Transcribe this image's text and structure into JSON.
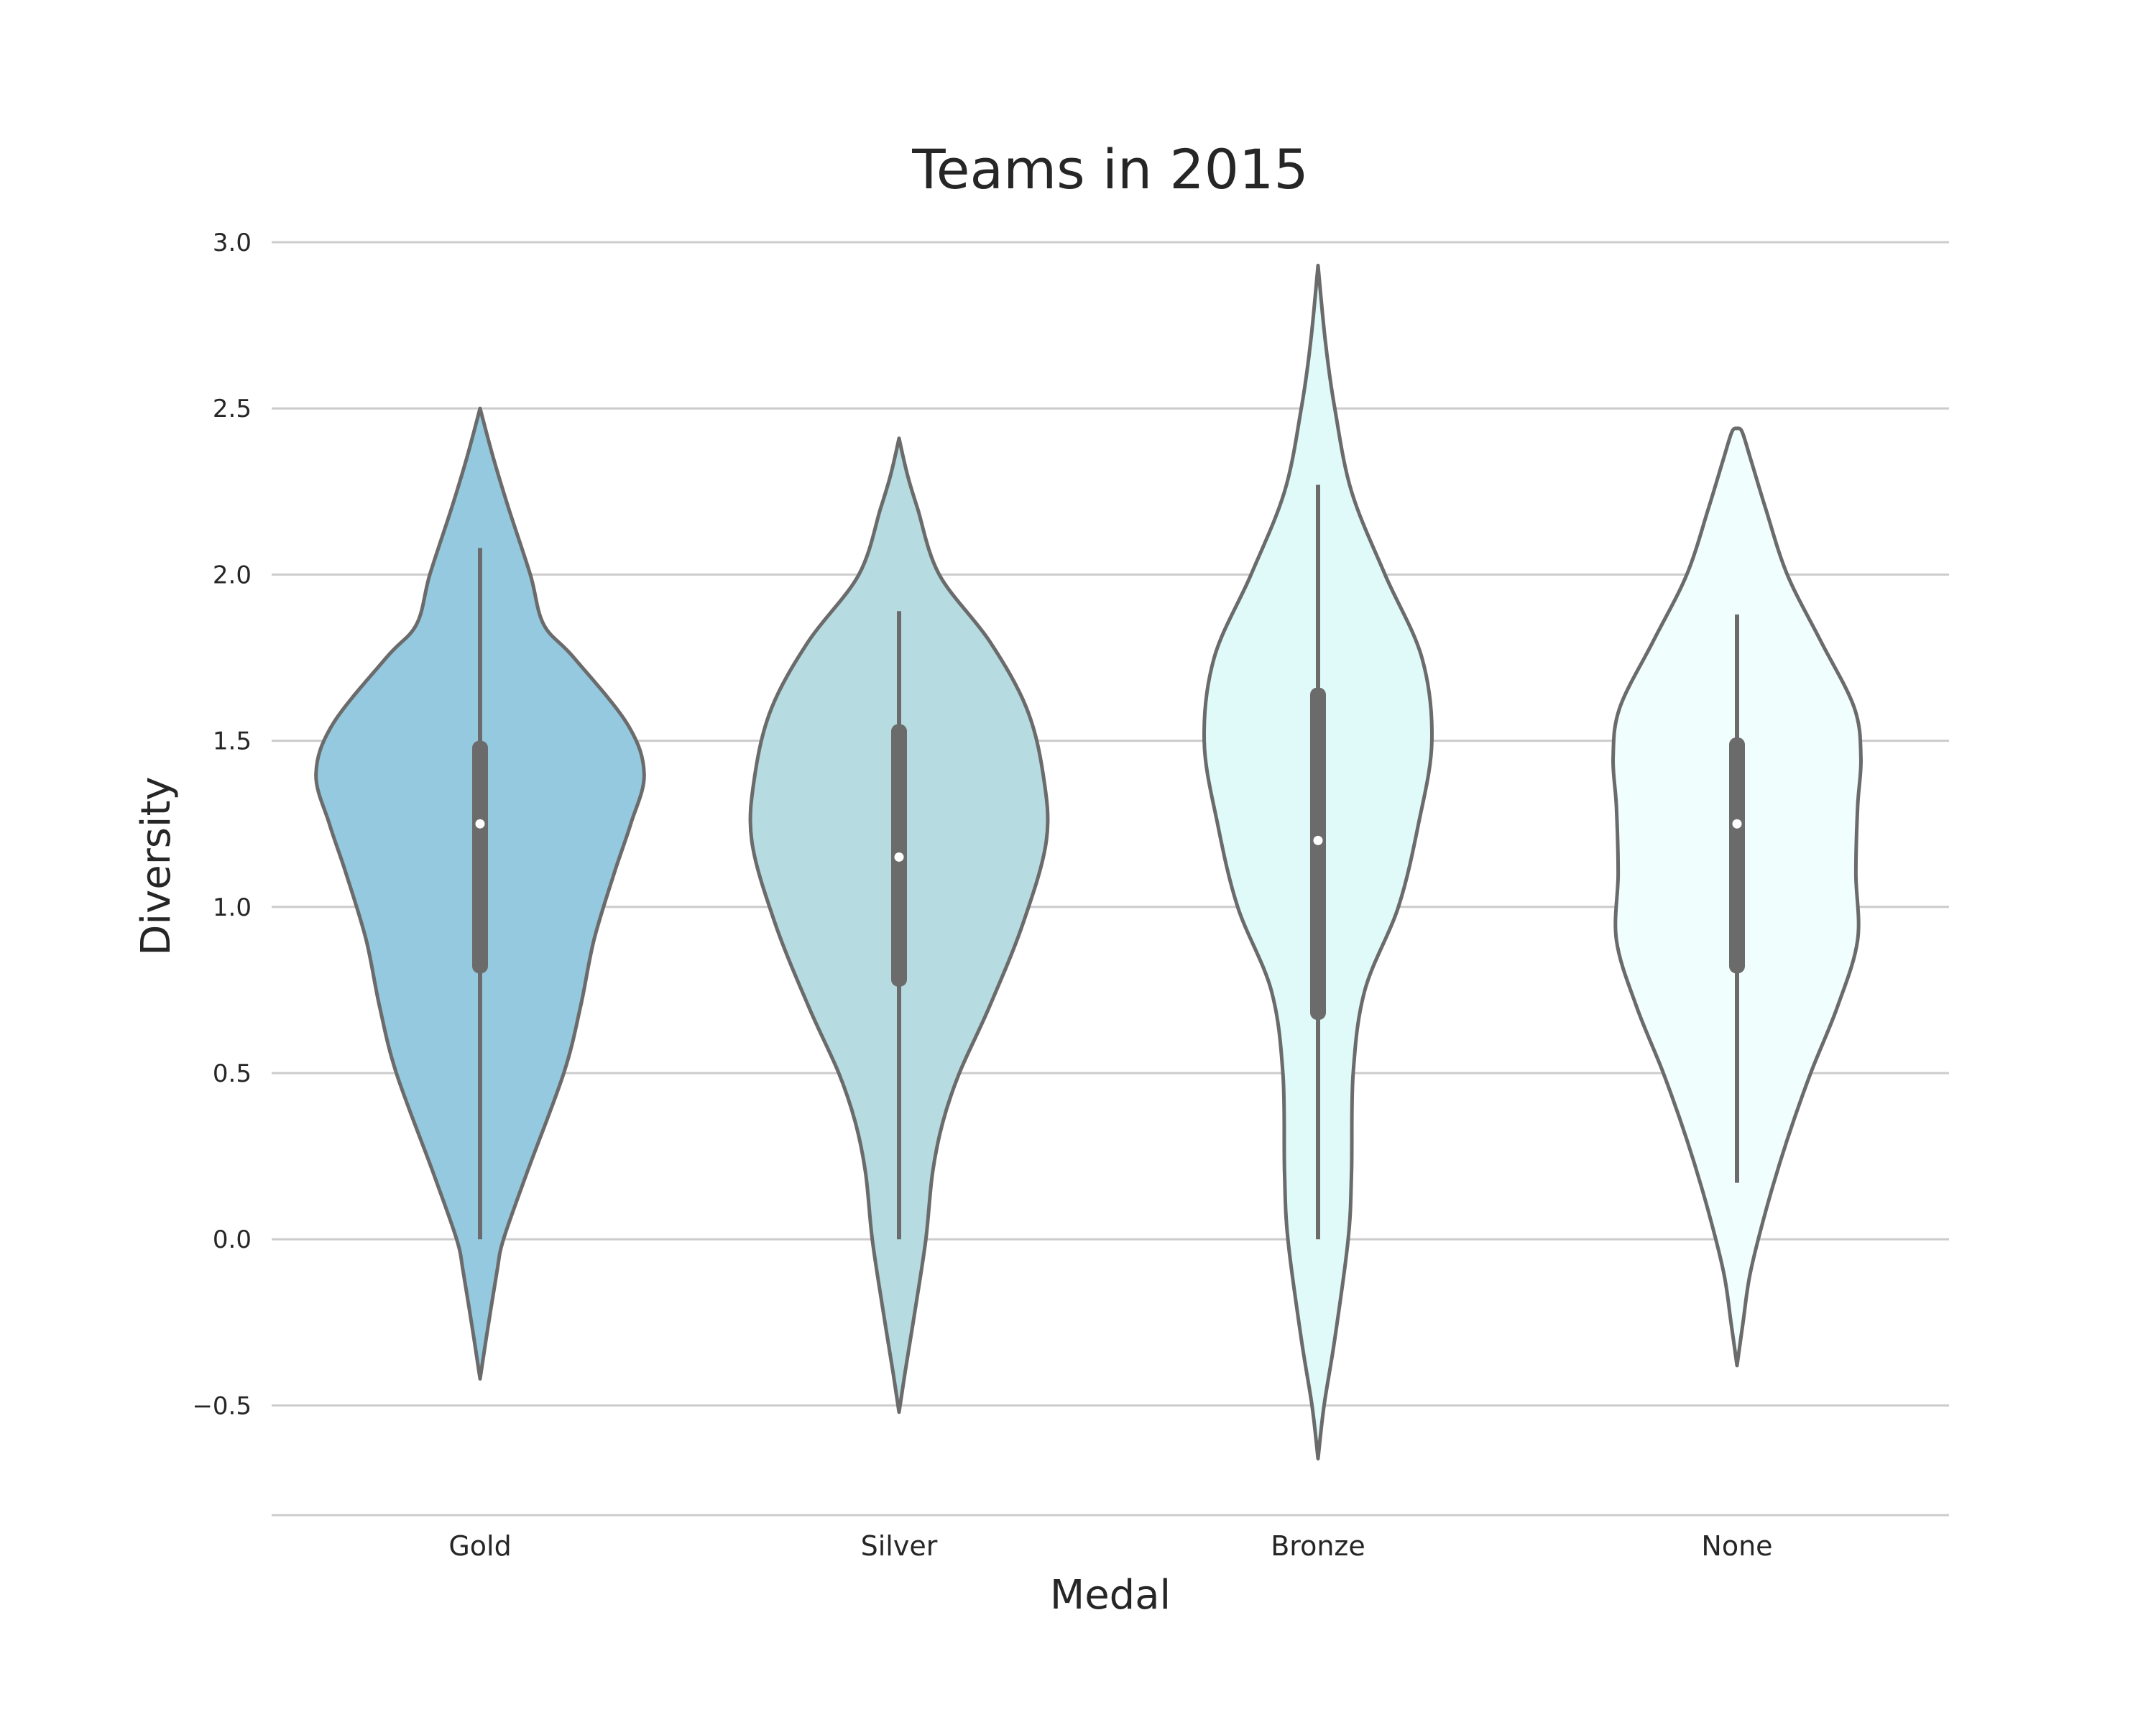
{
  "chart_data": {
    "type": "violin",
    "title": "Teams in 2015",
    "xlabel": "Medal",
    "ylabel": "Diversity",
    "ylim": [
      -0.83,
      3.0
    ],
    "yticks": [
      -0.5,
      0.0,
      0.5,
      1.0,
      1.5,
      2.0,
      2.5,
      3.0
    ],
    "ytick_labels": [
      "−0.5",
      "0.0",
      "0.5",
      "1.0",
      "1.5",
      "2.0",
      "2.5",
      "3.0"
    ],
    "grid": "horizontal",
    "categories": [
      "Gold",
      "Silver",
      "Bronze",
      "None"
    ],
    "colors": [
      "#95c9df",
      "#b6dbe0",
      "#e0fafa",
      "#f0fefe"
    ],
    "outline_color": "#6b6b6b",
    "violins": [
      {
        "category": "Gold",
        "median": 1.25,
        "q1": 0.8,
        "q3": 1.5,
        "whisker_low": 0.0,
        "whisker_high": 2.08,
        "profile": [
          [
            -0.42,
            0.0
          ],
          [
            -0.3,
            0.018
          ],
          [
            -0.1,
            0.05
          ],
          [
            0.0,
            0.07
          ],
          [
            0.2,
            0.14
          ],
          [
            0.5,
            0.25
          ],
          [
            0.7,
            0.3
          ],
          [
            0.9,
            0.34
          ],
          [
            1.1,
            0.4
          ],
          [
            1.25,
            0.45
          ],
          [
            1.4,
            0.49
          ],
          [
            1.55,
            0.44
          ],
          [
            1.75,
            0.28
          ],
          [
            1.85,
            0.19
          ],
          [
            2.0,
            0.15
          ],
          [
            2.2,
            0.085
          ],
          [
            2.35,
            0.04
          ],
          [
            2.5,
            0.0
          ]
        ]
      },
      {
        "category": "Silver",
        "median": 1.15,
        "q1": 0.76,
        "q3": 1.55,
        "whisker_low": 0.0,
        "whisker_high": 1.89,
        "profile": [
          [
            -0.52,
            0.0
          ],
          [
            -0.4,
            0.018
          ],
          [
            -0.2,
            0.05
          ],
          [
            0.0,
            0.08
          ],
          [
            0.2,
            0.1
          ],
          [
            0.35,
            0.13
          ],
          [
            0.5,
            0.18
          ],
          [
            0.7,
            0.27
          ],
          [
            0.95,
            0.37
          ],
          [
            1.2,
            0.44
          ],
          [
            1.4,
            0.43
          ],
          [
            1.6,
            0.38
          ],
          [
            1.8,
            0.27
          ],
          [
            2.0,
            0.12
          ],
          [
            2.2,
            0.055
          ],
          [
            2.3,
            0.025
          ],
          [
            2.41,
            0.0
          ]
        ]
      },
      {
        "category": "Bronze",
        "median": 1.2,
        "q1": 0.66,
        "q3": 1.66,
        "whisker_low": 0.0,
        "whisker_high": 2.27,
        "profile": [
          [
            -0.66,
            0.0
          ],
          [
            -0.5,
            0.018
          ],
          [
            -0.3,
            0.05
          ],
          [
            0.0,
            0.09
          ],
          [
            0.2,
            0.1
          ],
          [
            0.5,
            0.105
          ],
          [
            0.75,
            0.14
          ],
          [
            1.0,
            0.24
          ],
          [
            1.25,
            0.3
          ],
          [
            1.5,
            0.34
          ],
          [
            1.75,
            0.31
          ],
          [
            2.0,
            0.2
          ],
          [
            2.25,
            0.1
          ],
          [
            2.5,
            0.05
          ],
          [
            2.7,
            0.022
          ],
          [
            2.93,
            0.0
          ]
        ]
      },
      {
        "category": "None",
        "median": 1.25,
        "q1": 0.8,
        "q3": 1.51,
        "whisker_low": 0.17,
        "whisker_high": 1.88,
        "profile": [
          [
            -0.38,
            0.0
          ],
          [
            -0.25,
            0.018
          ],
          [
            -0.1,
            0.04
          ],
          [
            0.1,
            0.09
          ],
          [
            0.3,
            0.15
          ],
          [
            0.5,
            0.22
          ],
          [
            0.7,
            0.3
          ],
          [
            0.9,
            0.36
          ],
          [
            1.1,
            0.355
          ],
          [
            1.3,
            0.36
          ],
          [
            1.45,
            0.37
          ],
          [
            1.6,
            0.35
          ],
          [
            1.8,
            0.25
          ],
          [
            2.0,
            0.15
          ],
          [
            2.2,
            0.085
          ],
          [
            2.35,
            0.04
          ],
          [
            2.43,
            0.015
          ],
          [
            2.44,
            0.0
          ]
        ]
      }
    ]
  }
}
